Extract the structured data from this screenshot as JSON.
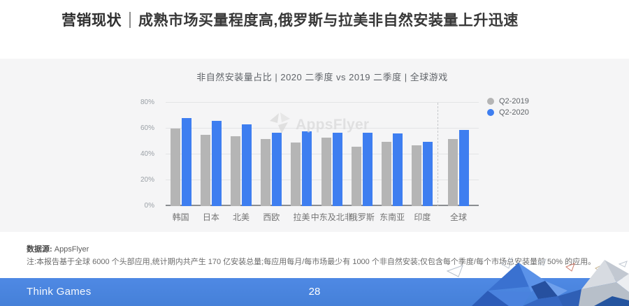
{
  "slide": {
    "title": {
      "emphasis": "营销现状",
      "rest": "成熟市场买量程度高,俄罗斯与拉美非自然安装量上升迅速"
    }
  },
  "chart_data": {
    "type": "bar",
    "title": "非自然安装量占比 | 2020 二季度 vs 2019 二季度 | 全球游戏",
    "categories": [
      "韩国",
      "日本",
      "北美",
      "西欧",
      "拉美",
      "中东及北非",
      "俄罗斯",
      "东南亚",
      "印度",
      "全球"
    ],
    "series": [
      {
        "name": "Q2-2019",
        "color": "#b5b5b5",
        "values": [
          60,
          55,
          54,
          52,
          49,
          53,
          46,
          50,
          47,
          52
        ]
      },
      {
        "name": "Q2-2020",
        "color": "#3e7ef0",
        "values": [
          68,
          66,
          63,
          57,
          58,
          57,
          57,
          56,
          50,
          59
        ]
      }
    ],
    "xlabel": "",
    "ylabel": "",
    "ylim": [
      0,
      80
    ],
    "y_ticks": [
      "0%",
      "20%",
      "40%",
      "60%",
      "80%"
    ],
    "grid": true,
    "legend_position": "top-right",
    "separator_index": 9,
    "watermark": "AppsFlyer"
  },
  "footnote": {
    "source_label": "数据源:",
    "source_value": " AppsFlyer",
    "note": "注:本报告基于全球 6000 个头部应用,统计期内共产生 170 亿安装总量;每应用每月/每市场最少有 1000 个非自然安装;仅包含每个季度/每个市场总安装量前 50% 的应用。"
  },
  "footer": {
    "brand": "Think Games",
    "page": "28"
  },
  "colors": {
    "accent_blue": "#3e7ef0",
    "series_gray": "#b5b5b5",
    "panel_bg": "#f5f5f6",
    "footer_blue": "#4a85df",
    "title_text": "#383838"
  }
}
